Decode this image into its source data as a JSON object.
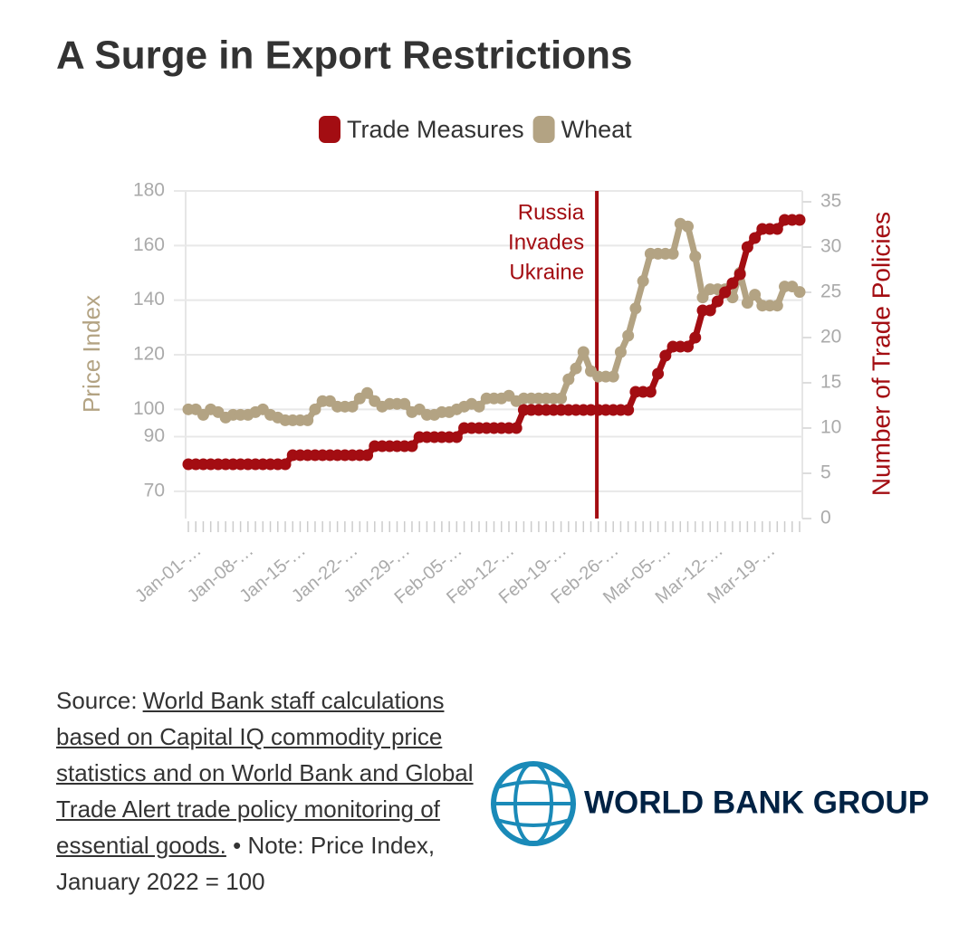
{
  "chart_data": {
    "type": "line",
    "title": "A Surge in Export Restrictions",
    "y_label": "Price Index",
    "y2_label": "Number of Trade Policies",
    "categories": [
      "Jan-01-…",
      null,
      null,
      null,
      null,
      null,
      null,
      "Jan-08-…",
      null,
      null,
      null,
      null,
      null,
      null,
      "Jan-15-…",
      null,
      null,
      null,
      null,
      null,
      null,
      "Jan-22-…",
      null,
      null,
      null,
      null,
      null,
      null,
      "Jan-29-…",
      null,
      null,
      null,
      null,
      null,
      null,
      "Feb-05-…",
      null,
      null,
      null,
      null,
      null,
      null,
      "Feb-12-…",
      null,
      null,
      null,
      null,
      null,
      null,
      "Feb-19-…",
      null,
      null,
      null,
      null,
      null,
      null,
      "Feb-26-…",
      null,
      null,
      null,
      null,
      null,
      null,
      "Mar-05-…",
      null,
      null,
      null,
      null,
      null,
      null,
      "Mar-12-…",
      null,
      null,
      null,
      null,
      null,
      null,
      "Mar-19-…",
      null,
      null,
      null,
      null,
      null
    ],
    "series": [
      {
        "name": "Trade Measures",
        "color": "#a30d12",
        "axis": "y2",
        "values": [
          6,
          6,
          6,
          6,
          6,
          6,
          6,
          6,
          6,
          6,
          6,
          6,
          6,
          6,
          7,
          7,
          7,
          7,
          7,
          7,
          7,
          7,
          7,
          7,
          7,
          8,
          8,
          8,
          8,
          8,
          8,
          9,
          9,
          9,
          9,
          9,
          9,
          10,
          10,
          10,
          10,
          10,
          10,
          10,
          10,
          12,
          12,
          12,
          12,
          12,
          12,
          12,
          12,
          12,
          12,
          12,
          12,
          12,
          12,
          12,
          14,
          14,
          14,
          16,
          18,
          19,
          19,
          19,
          20,
          23,
          23,
          24,
          25,
          26,
          27,
          30,
          31,
          32,
          32,
          32,
          33,
          33,
          33
        ]
      },
      {
        "name": "Wheat",
        "color": "#b3a383",
        "values": [
          100,
          100,
          98,
          100,
          99,
          97,
          98,
          98,
          98,
          99,
          100,
          98,
          97,
          96,
          96,
          96,
          96,
          100,
          103,
          103,
          101,
          101,
          101,
          104,
          106,
          103,
          101,
          102,
          102,
          102,
          99,
          100,
          98,
          98,
          99,
          99,
          100,
          101,
          102,
          101,
          104,
          104,
          104,
          105,
          103,
          104,
          104,
          104,
          104,
          104,
          104,
          111,
          115,
          121,
          114,
          112,
          112,
          112,
          121,
          127,
          137,
          147,
          157,
          157,
          157,
          157,
          168,
          167,
          156,
          141,
          144,
          144,
          144,
          141,
          150,
          139,
          142,
          138,
          138,
          138,
          145,
          145,
          143
        ]
      }
    ],
    "ylim": [
      60,
      180
    ],
    "yticks": [
      70,
      90,
      100,
      120,
      140,
      160,
      180
    ],
    "y2lim": [
      0,
      36.2
    ],
    "y2ticks": [
      0,
      5,
      10,
      15,
      20,
      25,
      30,
      35
    ],
    "grid": true,
    "legend": "top",
    "annotation": {
      "lines": [
        "Russia",
        "Invades",
        "Ukraine"
      ],
      "x": 54.8,
      "color": "#a30d12"
    }
  },
  "source": {
    "label": "Source:",
    "link": "World Bank staff calculations based on Capital IQ commodity price statistics and on World Bank and Global Trade Alert trade policy monitoring of essential goods.",
    "note": "• Note: Price Index, January 2022 = 100"
  },
  "logo": "WORLD BANK GROUP"
}
